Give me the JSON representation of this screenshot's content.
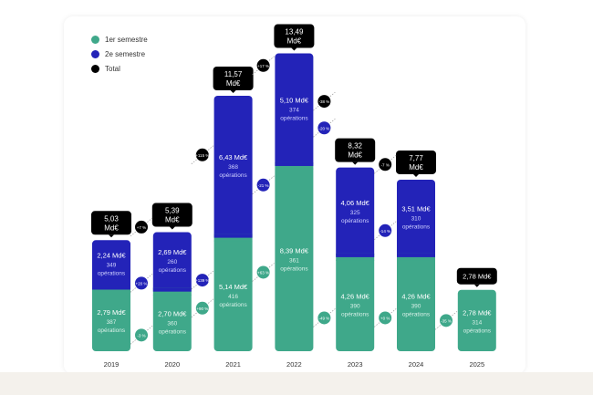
{
  "chart_data": {
    "type": "bar",
    "stacked": true,
    "categories": [
      "2019",
      "2020",
      "2021",
      "2022",
      "2023",
      "2024",
      "2025"
    ],
    "unit": "Md€",
    "ops_label": "opérations",
    "series": [
      {
        "name": "1er semestre",
        "color": "#3fa88a",
        "values": [
          2.79,
          2.7,
          5.14,
          8.39,
          4.26,
          4.26,
          2.78
        ],
        "operations": [
          387,
          360,
          416,
          361,
          390,
          390,
          314
        ],
        "labels": [
          "2,79 Md€",
          "2,70 Md€",
          "5,14 Md€",
          "8,39 Md€",
          "4,26 Md€",
          "4,26 Md€",
          "2,78 Md€"
        ],
        "changes": [
          "-3 %",
          "+90 %",
          "+63 %",
          "-49 %",
          "+0 %",
          "-35 %"
        ]
      },
      {
        "name": "2e semestre",
        "color": "#2323b8",
        "values": [
          2.24,
          2.69,
          6.43,
          5.1,
          4.06,
          3.51,
          null
        ],
        "operations": [
          349,
          260,
          368,
          374,
          325,
          310,
          null
        ],
        "labels": [
          "2,24 Md€",
          "2,69 Md€",
          "6,43 Md€",
          "5,10 Md€",
          "4,06 Md€",
          "3,51 Md€",
          null
        ],
        "changes": [
          "+20 %",
          "+139 %",
          "-21 %",
          "-20 %",
          "-14 %"
        ]
      },
      {
        "name": "Total",
        "color": "#000000",
        "values": [
          5.03,
          5.39,
          11.57,
          13.49,
          8.32,
          7.77,
          2.78
        ],
        "labels": [
          "5,03 Md€",
          "5,39 Md€",
          "11,57 Md€",
          "13,49 Md€",
          "8,32 Md€",
          "7,77 Md€",
          "2,78 Md€"
        ],
        "changes": [
          "+7 %",
          "+115 %",
          "+17 %",
          "-38 %",
          "-7 %"
        ]
      }
    ],
    "legend": "top-left",
    "grid": false
  }
}
